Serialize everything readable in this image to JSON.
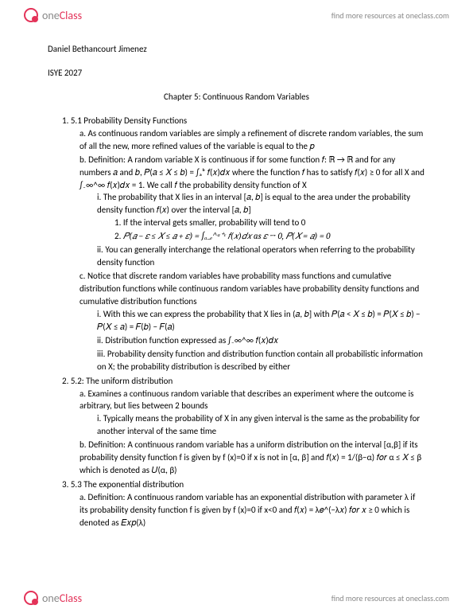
{
  "header": {
    "logo_one": "one",
    "logo_class": "Class",
    "find_more": "find more resources at oneclass.com"
  },
  "doc": {
    "author": "Daniel Bethancourt Jimenez",
    "course": "ISYE 2027",
    "chapter_title": "Chapter 5: Continuous Random Variables"
  },
  "s1": {
    "num": "1.",
    "title": "5.1 Probability Density Functions",
    "a_label": "a.",
    "a_text": "As continuous random variables are simply a refinement of discrete random variables, the sum of all the new, more refined values of the variable is equal to the 𝑝",
    "b_label": "b.",
    "b_text": "Definition: A random variable X is continuous if for some function 𝑓: ℝ → ℝ and for any numbers 𝑎 and 𝑏, 𝑃(𝑎 ≤ 𝑋 ≤ 𝑏) = ∫ₐᵇ 𝑓(𝑥)𝑑𝑥 where the function 𝑓 has to satisfy 𝑓(𝑥) ≥ 0 for all X and ∫₋∞^∞ 𝑓(𝑥)𝑑𝑥 = 1. We call 𝑓 the probability density function of X",
    "b_i_label": "i.",
    "b_i_text": "The probability that X lies in an interval [𝑎, 𝑏] is equal to the area under the probability density function 𝑓(𝑥) over the interval [𝑎, 𝑏]",
    "b_i_1_label": "1.",
    "b_i_1_text": "If the interval gets smaller, probability will tend to 0",
    "b_i_2_label": "2.",
    "b_i_2_text": "𝑃(𝑎 − 𝜀 ≤ 𝑋 ≤ 𝑎 + 𝜀) = ∫ₐ₋ₑ^ᵃ⁺ᵋ 𝑓(𝑥)𝑑𝑥  as 𝜀 → 0, 𝑃(𝑋 = 𝑎) = 0",
    "b_ii_label": "ii.",
    "b_ii_text": "You can generally interchange the relational operators when referring to the probability density function",
    "c_label": "c.",
    "c_text": "Notice that discrete random variables have probability mass functions and cumulative distribution functions while continuous random variables have probability density functions and cumulative distribution functions",
    "c_i_label": "i.",
    "c_i_text": "With this we can express the probability that X lies in (𝑎, 𝑏] with 𝑃(𝑎 < 𝑋 ≤ 𝑏) = 𝑃(𝑋 ≤ 𝑏) − 𝑃(𝑋 ≤ 𝑎) = 𝐹(𝑏) − 𝐹(𝑎)",
    "c_ii_label": "ii.",
    "c_ii_text": "Distribution function expressed as ∫₋∞^∞ 𝑓(𝑥)𝑑𝑥",
    "c_iii_label": "iii.",
    "c_iii_text": "Probability density function and distribution function contain all probabilistic information on X; the probability distribution is described by either"
  },
  "s2": {
    "num": "2.",
    "title": "5.2: The uniform distribution",
    "a_label": "a.",
    "a_text": "Examines a continuous random variable that describes an experiment where the outcome is arbitrary, but lies between 2 bounds",
    "a_i_label": "i.",
    "a_i_text": "Typically means the probability of X in any given interval is the same as the probability for another interval of the same time",
    "b_label": "b.",
    "b_text": "Definition: A continuous random variable has a uniform distribution on the interval [α,β] if its probability density function f is given by f (x)=0 if x is not in [α, β] and 𝑓(𝑥) = 1/(β−α)  𝑓𝑜𝑟 α ≤ 𝑋 ≤ β which is denoted as 𝑈(α, β)"
  },
  "s3": {
    "num": "3.",
    "title": "5.3 The exponential distribution",
    "a_label": "a.",
    "a_text": "Definition: A continuous random variable has an exponential distribution with parameter λ if its probability density function f is given by f (x)=0 if x<0 and 𝑓(𝑥) = λ𝑒^(−λ𝑥)  𝑓𝑜𝑟 𝑥 ≥ 0 which is denoted as 𝐸𝑥𝑝(λ)"
  },
  "footer": {
    "logo_one": "one",
    "logo_class": "Class",
    "find_more": "find more resources at oneclass.com"
  }
}
